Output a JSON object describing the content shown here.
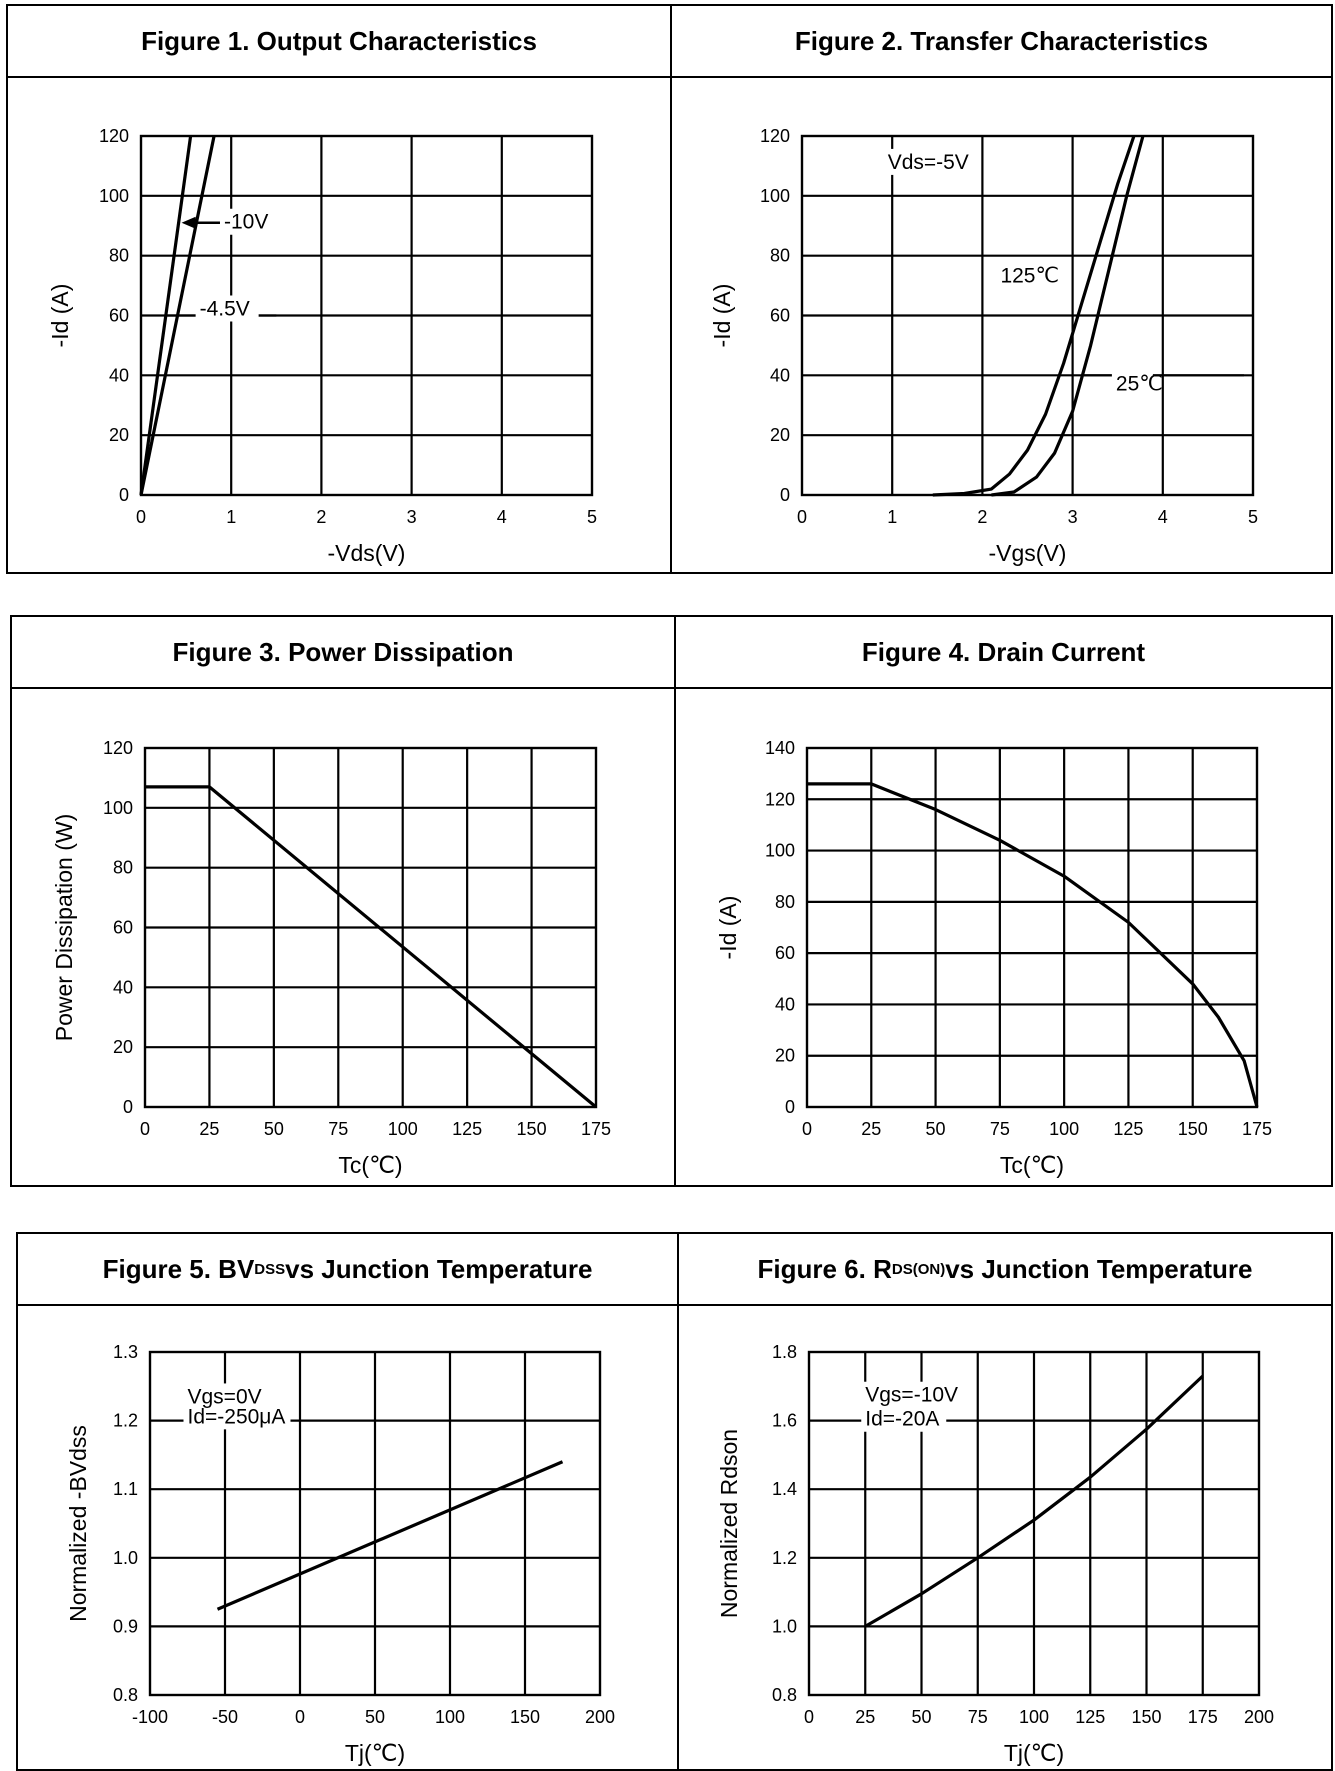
{
  "chart_data": [
    {
      "type": "line",
      "title": "Figure 1. Output Characteristics",
      "xlabel": "-Vds(V)",
      "ylabel": "-Id (A)",
      "xlim": [
        0,
        5
      ],
      "ylim": [
        0,
        120
      ],
      "xticks": [
        "0",
        "1",
        "2",
        "3",
        "4",
        "5"
      ],
      "yticks": [
        "0",
        "20",
        "40",
        "60",
        "80",
        "100",
        "120"
      ],
      "grid": true,
      "series": [
        {
          "name": "-10V",
          "x": [
            0,
            0.55
          ],
          "y": [
            0,
            120
          ]
        },
        {
          "name": "-4.5V",
          "x": [
            0,
            0.81
          ],
          "y": [
            0,
            120
          ]
        }
      ],
      "annotations": [
        {
          "text": "-10V",
          "x": 0.92,
          "y": 89,
          "ax": 0.45,
          "ay": 89
        },
        {
          "text": "-4.5V",
          "x": 0.65,
          "y": 60,
          "lx": 0.28,
          "ly": 60,
          "rx": 1.5
        }
      ]
    },
    {
      "type": "line",
      "title": "Figure 2. Transfer Characteristics",
      "xlabel": "-Vgs(V)",
      "ylabel": "-Id (A)",
      "xlim": [
        0,
        5
      ],
      "ylim": [
        0,
        120
      ],
      "xticks": [
        "0",
        "1",
        "2",
        "3",
        "4",
        "5"
      ],
      "yticks": [
        "0",
        "20",
        "40",
        "60",
        "80",
        "100",
        "120"
      ],
      "grid": true,
      "series": [
        {
          "name": "125℃",
          "x": [
            1.45,
            1.8,
            2.1,
            2.3,
            2.5,
            2.7,
            2.9,
            3.1,
            3.3,
            3.5,
            3.68
          ],
          "y": [
            0,
            0.5,
            2,
            7,
            15,
            27,
            44,
            64,
            84,
            104,
            120
          ]
        },
        {
          "name": "25℃",
          "x": [
            2.1,
            2.35,
            2.6,
            2.8,
            3.0,
            3.2,
            3.4,
            3.6,
            3.78
          ],
          "y": [
            0,
            1,
            6,
            14,
            28,
            50,
            75,
            100,
            120
          ]
        }
      ],
      "annotations": [
        {
          "text": "Vds=-5V",
          "x": 0.95,
          "y": 109
        },
        {
          "text": "125℃",
          "x": 2.2,
          "y": 71
        },
        {
          "text": "25℃",
          "x": 3.48,
          "y": 35,
          "lx": 3.1,
          "ly": 40,
          "rx": 4.9
        }
      ]
    },
    {
      "type": "line",
      "title": "Figure 3. Power Dissipation",
      "xlabel": "Tc(℃)",
      "ylabel": "Power Dissipation (W)",
      "xlim": [
        0,
        175
      ],
      "ylim": [
        0,
        120
      ],
      "xticks": [
        "0",
        "25",
        "50",
        "75",
        "100",
        "125",
        "150",
        "175"
      ],
      "yticks": [
        "0",
        "20",
        "40",
        "60",
        "80",
        "100",
        "120"
      ],
      "grid": true,
      "series": [
        {
          "name": "",
          "x": [
            0,
            25,
            175
          ],
          "y": [
            107,
            107,
            0
          ]
        }
      ]
    },
    {
      "type": "line",
      "title": "Figure 4. Drain Current",
      "xlabel": "Tc(℃)",
      "ylabel": "-Id (A)",
      "xlim": [
        0,
        175
      ],
      "ylim": [
        0,
        140
      ],
      "xticks": [
        "0",
        "25",
        "50",
        "75",
        "100",
        "125",
        "150",
        "175"
      ],
      "yticks": [
        "0",
        "20",
        "40",
        "60",
        "80",
        "100",
        "120",
        "140"
      ],
      "grid": true,
      "series": [
        {
          "name": "",
          "x": [
            0,
            25,
            50,
            75,
            100,
            125,
            150,
            160,
            170,
            175
          ],
          "y": [
            126,
            126,
            116,
            104,
            90,
            72,
            48,
            35,
            18,
            0
          ]
        }
      ]
    },
    {
      "type": "line",
      "title": "Figure 5. BV<sub>DSS</sub> vs Junction Temperature",
      "xlabel": "Tj(℃)",
      "ylabel": "Normalized  -BVdss",
      "xlim": [
        -100,
        200
      ],
      "ylim": [
        0.8,
        1.3
      ],
      "xticks": [
        "-100",
        "-50",
        "0",
        "50",
        "100",
        "150",
        "200"
      ],
      "yticks": [
        "0.8",
        "0.9",
        "1.0",
        "1.1",
        "1.2",
        "1.3"
      ],
      "grid": true,
      "series": [
        {
          "name": "",
          "x": [
            -55,
            175
          ],
          "y": [
            0.925,
            1.14
          ]
        }
      ],
      "annotations": [
        {
          "text": "Vgs=0V",
          "x": -75,
          "y": 1.225
        },
        {
          "text": "Id=-250μA",
          "x": -75,
          "y": 1.196
        }
      ]
    },
    {
      "type": "line",
      "title": "Figure 6. R<sub>DS(ON)</sub> vs Junction Temperature",
      "xlabel": "Tj(℃)",
      "ylabel": "Normalized  Rdson",
      "xlim": [
        0,
        200
      ],
      "ylim": [
        0.8,
        1.8
      ],
      "xticks": [
        "0",
        "25",
        "50",
        "75",
        "100",
        "125",
        "150",
        "175",
        "200"
      ],
      "yticks": [
        "0.8",
        "1.0",
        "1.2",
        "1.4",
        "1.6",
        "1.8"
      ],
      "grid": true,
      "series": [
        {
          "name": "",
          "x": [
            25,
            50,
            75,
            100,
            125,
            150,
            175
          ],
          "y": [
            1.0,
            1.095,
            1.2,
            1.31,
            1.435,
            1.575,
            1.73
          ]
        }
      ],
      "annotations": [
        {
          "text": "Vgs=-10V",
          "x": 25,
          "y": 1.655
        },
        {
          "text": "Id=-20A",
          "x": 25,
          "y": 1.585
        }
      ]
    }
  ]
}
